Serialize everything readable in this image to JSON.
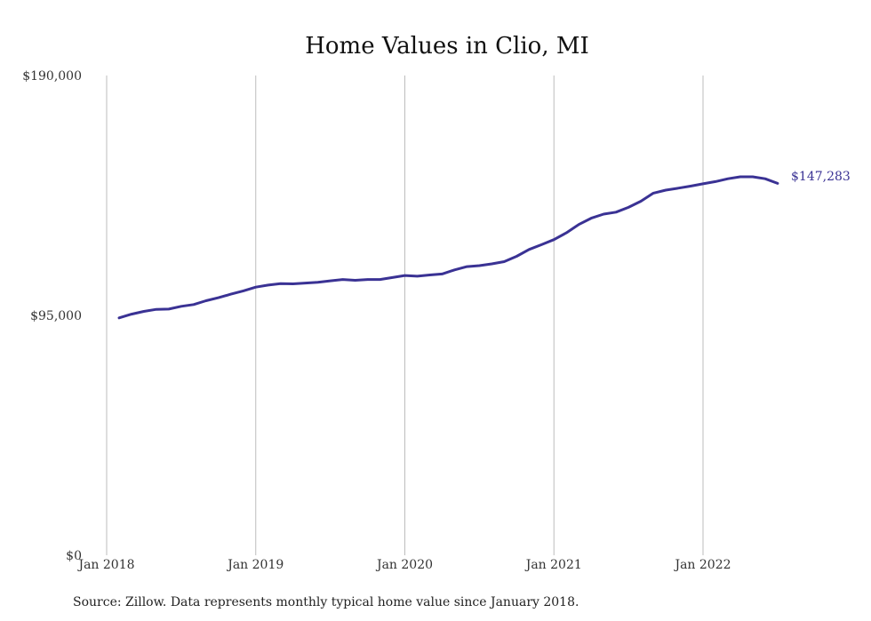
{
  "chart_data": {
    "type": "line",
    "title": "Home Values in Clio, MI",
    "xlabel": "",
    "ylabel": "",
    "source": "Source: Zillow. Data represents monthly typical home value since January 2018.",
    "y_ticks": [
      {
        "value": 0,
        "label": "$0"
      },
      {
        "value": 95000,
        "label": "$95,000"
      },
      {
        "value": 190000,
        "label": "$190,000"
      }
    ],
    "x_ticks": [
      {
        "value": "2018-01",
        "label": "Jan 2018"
      },
      {
        "value": "2019-01",
        "label": "Jan 2019"
      },
      {
        "value": "2020-01",
        "label": "Jan 2020"
      },
      {
        "value": "2021-01",
        "label": "Jan 2021"
      },
      {
        "value": "2022-01",
        "label": "Jan 2022"
      }
    ],
    "xlim": [
      "2018-01",
      "2022-07"
    ],
    "ylim": [
      0,
      190000
    ],
    "grid": "vertical",
    "line_color": "#3a3294",
    "end_label": "$147,283",
    "series": [
      {
        "x": [
          "2018-02",
          "2018-03",
          "2018-04",
          "2018-05",
          "2018-06",
          "2018-07",
          "2018-08",
          "2018-09",
          "2018-10",
          "2018-11",
          "2018-12",
          "2019-01",
          "2019-02",
          "2019-03",
          "2019-04",
          "2019-05",
          "2019-06",
          "2019-07",
          "2019-08",
          "2019-09",
          "2019-10",
          "2019-11",
          "2019-12",
          "2020-01",
          "2020-02",
          "2020-03",
          "2020-04",
          "2020-05",
          "2020-06",
          "2020-07",
          "2020-08",
          "2020-09",
          "2020-10",
          "2020-11",
          "2020-12",
          "2021-01",
          "2021-02",
          "2021-03",
          "2021-04",
          "2021-05",
          "2021-06",
          "2021-07",
          "2021-08",
          "2021-09",
          "2021-10",
          "2021-11",
          "2021-12",
          "2022-01",
          "2022-02",
          "2022-03",
          "2022-04",
          "2022-05",
          "2022-06",
          "2022-07"
        ],
        "values": [
          94000,
          95500,
          96600,
          97400,
          97500,
          98600,
          99300,
          100800,
          102000,
          103400,
          104700,
          106200,
          107000,
          107600,
          107500,
          107800,
          108100,
          108700,
          109200,
          108900,
          109200,
          109200,
          110000,
          110800,
          110500,
          111000,
          111400,
          113000,
          114300,
          114700,
          115400,
          116300,
          118400,
          121100,
          123000,
          125000,
          127700,
          131000,
          133500,
          135100,
          135900,
          137800,
          140200,
          143400,
          144600,
          145400,
          146200,
          147100,
          148000,
          149100,
          149900,
          149900,
          149100,
          147283
        ]
      }
    ]
  }
}
